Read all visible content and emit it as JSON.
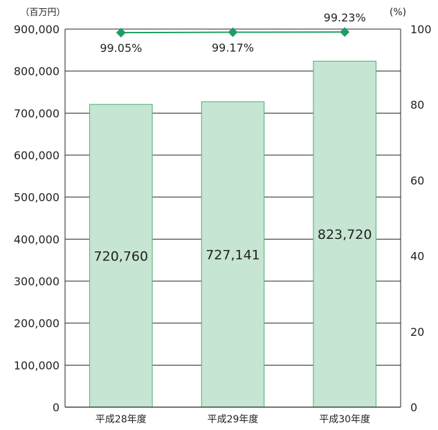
{
  "chart_data": {
    "type": "bar",
    "categories": [
      "平成28年度",
      "平成29年度",
      "平成30年度"
    ],
    "series": [
      {
        "type": "bar",
        "axis": "left",
        "values": [
          720760,
          727141,
          823720
        ],
        "color": "#c6e5d2",
        "stroke": "#4cae79"
      },
      {
        "type": "line",
        "axis": "right",
        "values": [
          99.05,
          99.17,
          99.23
        ],
        "color": "#1f9e64"
      }
    ],
    "bar_labels": [
      "720,760",
      "727,141",
      "823,720"
    ],
    "line_labels": [
      "99.05%",
      "99.17%",
      "99.23%"
    ],
    "y_left": {
      "unit_label": "（百万円）",
      "ylim": [
        0,
        900000
      ],
      "ticks": [
        "0",
        "100,000",
        "200,000",
        "300,000",
        "400,000",
        "500,000",
        "600,000",
        "700,000",
        "800,000",
        "900,000"
      ]
    },
    "y_right": {
      "unit_label": "(%)",
      "ylim": [
        0,
        100
      ],
      "ticks": [
        "0",
        "20",
        "40",
        "60",
        "80",
        "100"
      ]
    },
    "grid": true,
    "grid_color": "#222222"
  }
}
